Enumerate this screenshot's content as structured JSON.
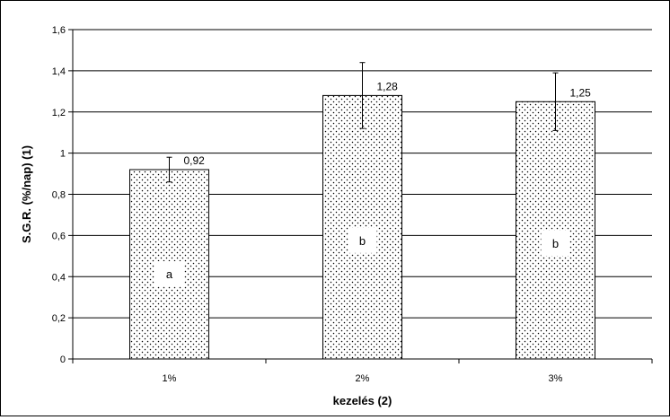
{
  "chart_data": {
    "type": "bar",
    "title": "",
    "xlabel": "kezelés (2)",
    "ylabel": "S.G.R. (%/nap) (1)",
    "ylim": [
      0,
      1.6
    ],
    "ytick_step": 0.2,
    "ytick_labels": [
      "0",
      "0,2",
      "0,4",
      "0,6",
      "0,8",
      "1",
      "1,2",
      "1,4",
      "1,6"
    ],
    "categories": [
      "1%",
      "2%",
      "3%"
    ],
    "values": [
      0.92,
      1.28,
      1.25
    ],
    "value_labels": [
      "0,92",
      "1,28",
      "1,25"
    ],
    "error_plus_minus": [
      0.06,
      0.16,
      0.14
    ],
    "significance_letters": [
      "a",
      "b",
      "b"
    ],
    "grid": true,
    "bar_pattern": "dotted",
    "colors": {
      "bar_fill": "#ffffff",
      "dots": "#000000",
      "grid": "#000000"
    }
  }
}
